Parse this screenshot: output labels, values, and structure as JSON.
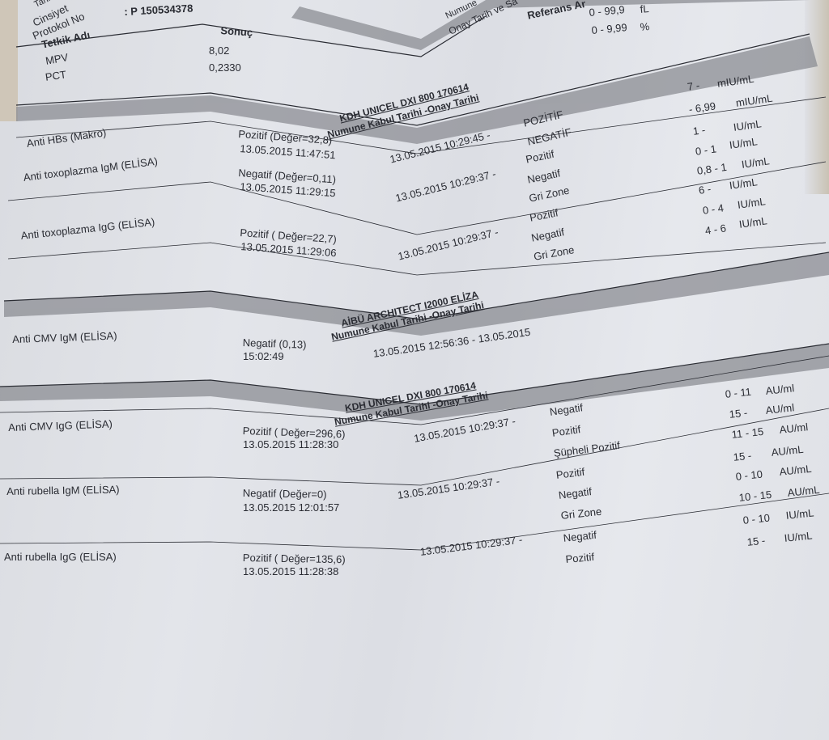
{
  "header": {
    "labels": [
      "Tarih",
      "Cinsiyet",
      "Protokol No"
    ],
    "protocol_value": ": P 150534378",
    "right_labels": [
      "Numune",
      "Onay Tarih ve Sa",
      "Referans Ar"
    ]
  },
  "columns": {
    "test_name": "Tetkik Adı",
    "result": "Sonuç"
  },
  "hemogram": [
    {
      "name": "MPV",
      "value": "8,02",
      "ref": "0 - 99,9",
      "unit": "fL"
    },
    {
      "name": "PCT",
      "value": "0,2330",
      "ref": "0 - 9,99",
      "unit": "%"
    }
  ],
  "sections": [
    {
      "device": "KDH UNICEL DXI 800 170614",
      "subtitle": "Numune Kabul Tarihi -Onay Tarihi"
    },
    {
      "device": "AİBÜ ARCHITECT I2000 ELİZA",
      "subtitle": "Numune Kabul Tarihi -Onay Tarihi"
    },
    {
      "device": "KDH UNICEL DXI 800 170614",
      "subtitle": "Numune Kabul Tarihi -Onay Tarihi"
    }
  ],
  "tests": [
    {
      "name": "Anti HBs (Makro)",
      "result": "Pozitif (Değer=32,8)",
      "time": "13.05.2015 11:47:51",
      "accept": "13.05.2015 10:29:45 -",
      "interp": [
        "POZİTİF",
        "NEGATİF"
      ],
      "refs": [
        [
          "7 -",
          "mIU/mL"
        ],
        [
          "- 6,99",
          "mIU/mL"
        ]
      ]
    },
    {
      "name": "Anti toxoplazma IgM (ELİSA)",
      "result": "Negatif (Değer=0,11)",
      "time": "13.05.2015 11:29:15",
      "accept": "13.05.2015 10:29:37 -",
      "interp": [
        "Pozitif",
        "Negatif",
        "Gri Zone"
      ],
      "refs": [
        [
          "1 -",
          "IU/mL"
        ],
        [
          "0 - 1",
          "IU/mL"
        ],
        [
          "0,8 - 1",
          "IU/mL"
        ]
      ]
    },
    {
      "name": "Anti toxoplazma IgG (ELİSA)",
      "result": "Pozitif ( Değer=22,7)",
      "time": "13.05.2015 11:29:06",
      "accept": "13.05.2015 10:29:37 -",
      "interp": [
        "Pozitif",
        "Negatif",
        "Gri Zone"
      ],
      "refs": [
        [
          "6 -",
          "IU/mL"
        ],
        [
          "0 - 4",
          "IU/mL"
        ],
        [
          "4 - 6",
          "IU/mL"
        ]
      ]
    },
    {
      "name": "Anti CMV IgM (ELİSA)",
      "result": "Negatif (0,13)",
      "time": "15:02:49",
      "accept": "13.05.2015 12:56:36 - 13.05.2015"
    },
    {
      "name": "Anti CMV IgG (ELİSA)",
      "result": "Pozitif ( Değer=296,6)",
      "time": "13.05.2015 11:28:30",
      "accept": "13.05.2015 10:29:37 -",
      "interp": [
        "Negatif",
        "Pozitif",
        "Şüpheli Pozitif"
      ],
      "refs": [
        [
          "0 - 11",
          "AU/ml"
        ],
        [
          "15 -",
          "AU/ml"
        ],
        [
          "11 - 15",
          "AU/ml"
        ]
      ]
    },
    {
      "name": "Anti rubella IgM (ELİSA)",
      "result": "Negatif (Değer=0)",
      "time": "13.05.2015 12:01:57",
      "accept": "13.05.2015 10:29:37 -",
      "interp": [
        "Pozitif",
        "Negatif",
        "Gri Zone"
      ],
      "refs": [
        [
          "15 -",
          "AU/mL"
        ],
        [
          "0 - 10",
          "AU/mL"
        ],
        [
          "10 - 15",
          "AU/mL"
        ]
      ]
    },
    {
      "name": "Anti rubella IgG (ELİSA)",
      "result": "Pozitif ( Değer=135,6)",
      "time": "13.05.2015 11:28:38",
      "accept": "13.05.2015 10:29:37 -",
      "interp": [
        "Negatif",
        "Pozitif"
      ],
      "refs": [
        [
          "0 - 10",
          "IU/mL"
        ],
        [
          "15 -",
          "IU/mL"
        ]
      ]
    }
  ],
  "colors": {
    "paper": "#e3e5ea",
    "band": "#8c8e94",
    "ink": "#2a2c33"
  }
}
